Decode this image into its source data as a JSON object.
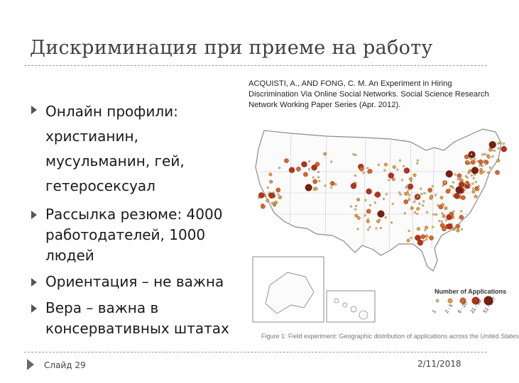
{
  "slide": {
    "title": "Дискриминация при приеме на работу",
    "footer_label": "Слайд 29",
    "date": "2/11/2018"
  },
  "bullets": [
    {
      "text": "Онлайн профили:\nхристианин, мусульманин, гей, гетеросексуал"
    },
    {
      "text": "Рассылка резюме: 4000 работодателей, 1000 людей"
    },
    {
      "text": "Ориентация – не важна"
    },
    {
      "text": "Вера – важна в консервативных штатах"
    }
  ],
  "citation": "ACQUISTI, A., AND FONG, C. M. An Experiment in Hiring Discrimination Via Online Social Networks. Social Science Research Network Working Paper Series (Apr. 2012).",
  "figure": {
    "legend_title": "Number of Applications",
    "legend_bins": [
      "1",
      "2 - 5",
      "6 - 20",
      "21 - 50",
      "51 - 177"
    ],
    "legend_colors": [
      "#f2d37a",
      "#e9a23b",
      "#d9662a",
      "#b8301f",
      "#7a1d12"
    ],
    "caption": "Figure 1: Field experiment: Geographic distribution of applications across the United States",
    "point_color_main": "#c0641e",
    "point_color_dark": "#7a2a14"
  }
}
